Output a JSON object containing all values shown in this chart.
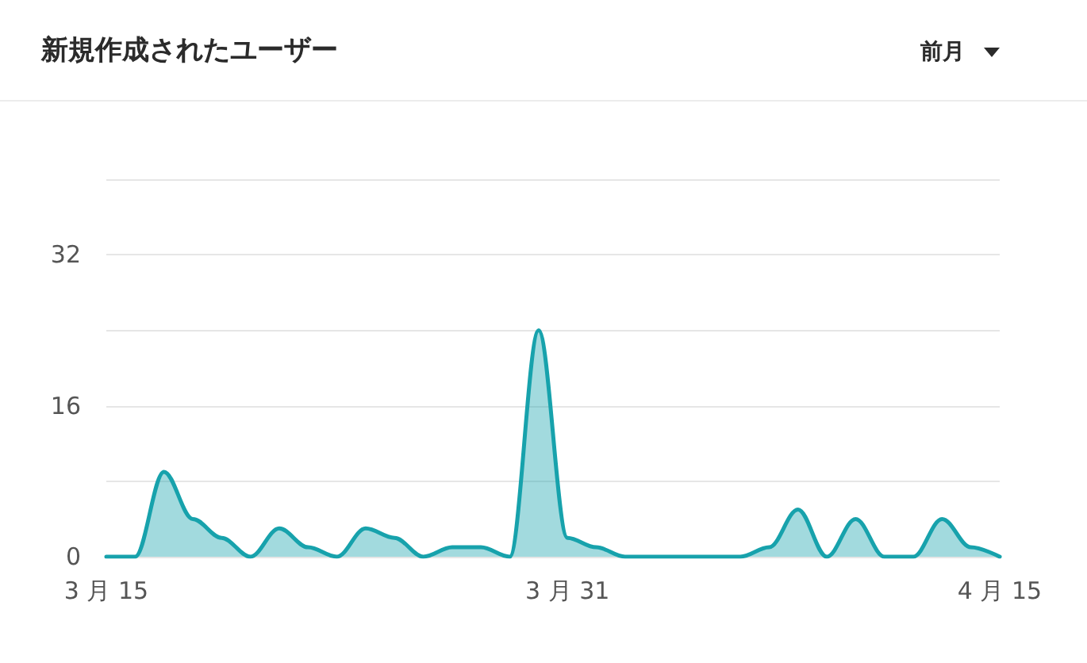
{
  "chart_data": {
    "type": "area",
    "title": "新規作成されたユーザー",
    "annotations": [
      "前月"
    ],
    "x": [
      "--03-15",
      "--03-16",
      "--03-17",
      "--03-18",
      "--03-19",
      "--03-20",
      "--03-21",
      "--03-22",
      "--03-23",
      "--03-24",
      "--03-25",
      "--03-26",
      "--03-27",
      "--03-28",
      "--03-29",
      "--03-30",
      "--03-31",
      "--04-01",
      "--04-02",
      "--04-03",
      "--04-04",
      "--04-05",
      "--04-06",
      "--04-07",
      "--04-08",
      "--04-09",
      "--04-10",
      "--04-11",
      "--04-12",
      "--04-13",
      "--04-14",
      "--04-15"
    ],
    "series": [
      {
        "color": "#17a2ac",
        "values": [
          0,
          0,
          9,
          4,
          2,
          0,
          3,
          1,
          0,
          3,
          2,
          0,
          1,
          1,
          0,
          24,
          2,
          1,
          0,
          0,
          0,
          0,
          0,
          1,
          5,
          0,
          4,
          0,
          0,
          4,
          1,
          0
        ]
      }
    ],
    "xlim": [
      "--03-15",
      "--04-15"
    ],
    "xticks": [
      {
        "value": "--03-15",
        "label": "3 月 15"
      },
      {
        "value": "--03-31",
        "label": "3 月 31"
      },
      {
        "value": "--04-15",
        "label": "4 月 15"
      }
    ],
    "ylim": [
      0,
      40
    ],
    "yticks": [
      0,
      {
        "value": 8,
        "label": null
      },
      16,
      {
        "value": 24,
        "label": null
      },
      32,
      {
        "value": 40,
        "label": null
      }
    ],
    "grid": "y",
    "marker": "none",
    "line_style": "solid"
  }
}
